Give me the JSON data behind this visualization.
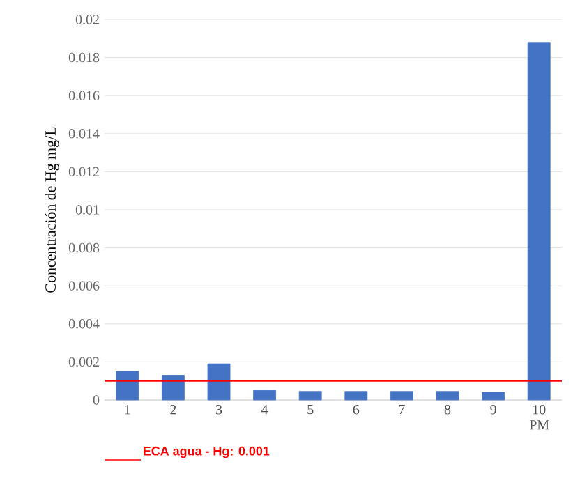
{
  "chart_data": {
    "type": "bar",
    "ylabel": "Concentración de Hg mg/L",
    "categories": [
      "1",
      "2",
      "3",
      "4",
      "5",
      "6",
      "7",
      "8",
      "9",
      "10 PM"
    ],
    "values": [
      0.0015,
      0.0013,
      0.0019,
      0.0005,
      0.00045,
      0.00045,
      0.00045,
      0.00045,
      0.0004,
      0.0188
    ],
    "color": "#4472c4",
    "ylim": [
      0,
      0.02
    ],
    "yticks": [
      0,
      0.002,
      0.004,
      0.006,
      0.008,
      0.01,
      0.012,
      0.014,
      0.016,
      0.018,
      0.02
    ],
    "grid": "y",
    "ref_lines": [
      {
        "axis": "y",
        "value": 0.001,
        "label": "ECA agua - Hg: 0.001",
        "color": "#ff0000"
      }
    ]
  }
}
